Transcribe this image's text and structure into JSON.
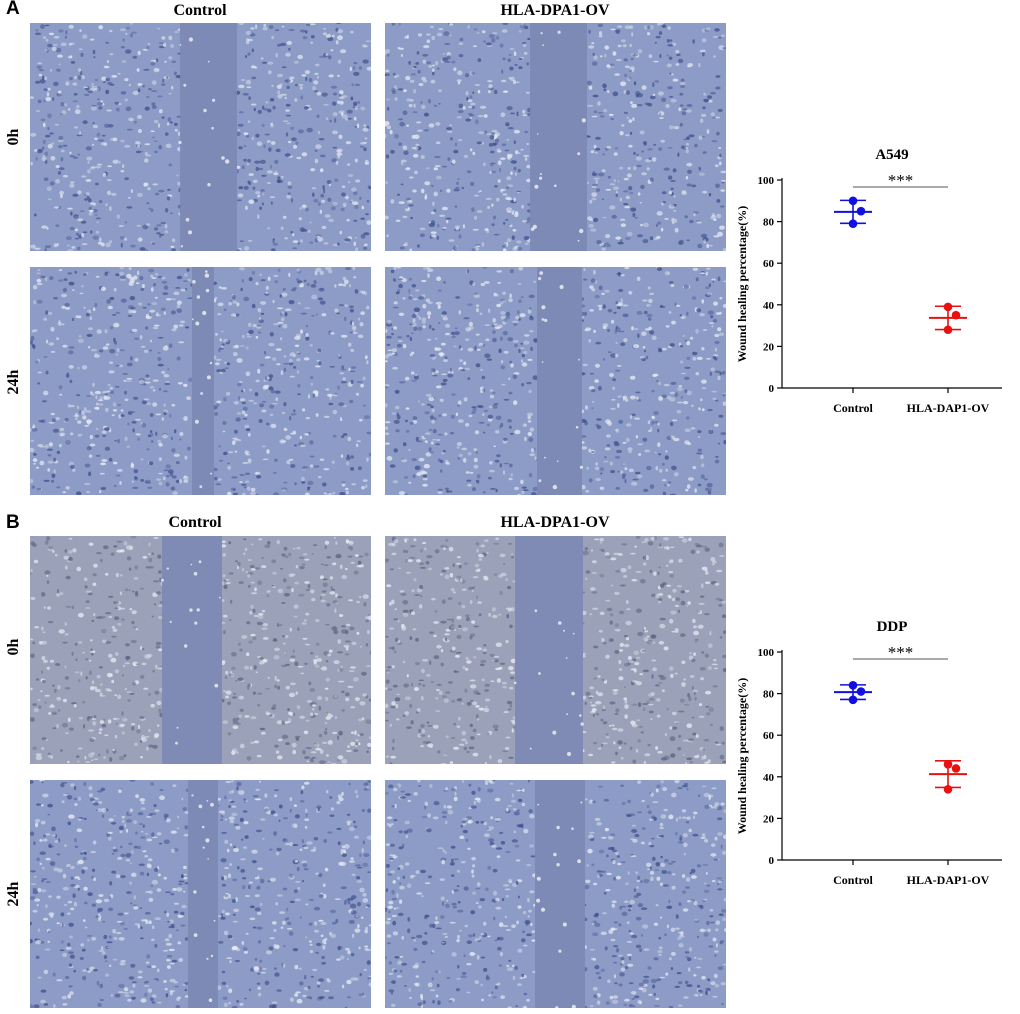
{
  "panels": [
    {
      "letter": "A",
      "columns": [
        "Control",
        "HLA-DPA1-OV"
      ],
      "rows": [
        "0h",
        "24h"
      ]
    },
    {
      "letter": "B",
      "columns": [
        "Control",
        "HLA-DPA1-OV"
      ],
      "rows": [
        "0h",
        "24h"
      ]
    }
  ],
  "colors": {
    "control": "#1010e0",
    "ov": "#e81010",
    "cells_blue": "#8d9cc6",
    "cells_grey": "#9aa1b8",
    "scratch": "#7c88b4"
  },
  "chart_data": [
    {
      "type": "scatter",
      "title": "A549",
      "ylabel": "Wound healing percentage(%)",
      "xlabel": "",
      "categories": [
        "Control",
        "HLA-DAP1-OV"
      ],
      "ylim": [
        0,
        100
      ],
      "yticks": [
        0,
        20,
        40,
        60,
        80,
        100
      ],
      "significance": "***",
      "series": [
        {
          "category": "Control",
          "points": [
            90,
            85,
            79
          ],
          "mean": 84.7,
          "sd": 5.5
        },
        {
          "category": "HLA-DAP1-OV",
          "points": [
            39,
            35,
            28
          ],
          "mean": 33.7,
          "sd": 5.6
        }
      ]
    },
    {
      "type": "scatter",
      "title": "DDP",
      "ylabel": "Wound healing percentage(%)",
      "xlabel": "",
      "categories": [
        "Control",
        "HLA-DAP1-OV"
      ],
      "ylim": [
        0,
        100
      ],
      "yticks": [
        0,
        20,
        40,
        60,
        80,
        100
      ],
      "significance": "***",
      "series": [
        {
          "category": "Control",
          "points": [
            84,
            81,
            77
          ],
          "mean": 80.7,
          "sd": 3.5
        },
        {
          "category": "HLA-DAP1-OV",
          "points": [
            46,
            44,
            34
          ],
          "mean": 41.3,
          "sd": 6.4
        }
      ]
    }
  ]
}
